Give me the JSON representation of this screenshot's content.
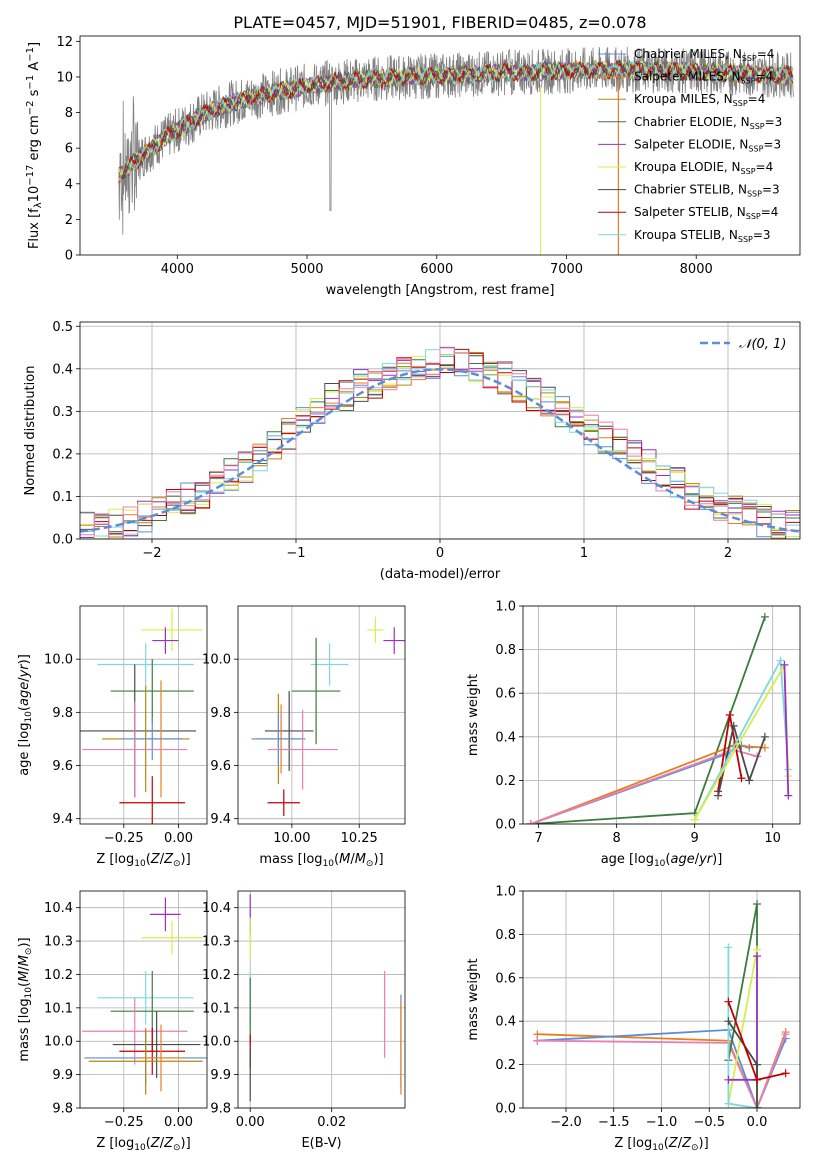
{
  "figure": {
    "title": "PLATE=0457, MJD=51901, FIBERID=0485, z=0.078"
  },
  "colors": {
    "Chabrier MILES": "#5b8ed6",
    "Salpeter MILES": "#e67e22",
    "Kroupa MILES": "#b8860b",
    "Chabrier ELODIE": "#3d7a3d",
    "Salpeter ELODIE": "#9b30c8",
    "Kroupa ELODIE": "#d4f04a",
    "Chabrier STELIB": "#4a4a4a",
    "Salpeter STELIB": "#c00000",
    "Kroupa STELIB": "#7fd8e0",
    "pink": "#e87fb0",
    "data": "#808080"
  },
  "chart_data": [
    {
      "type": "line",
      "title": "PLATE=0457, MJD=51901, FIBERID=0485, z=0.078",
      "xlabel": "wavelength [Angstrom, rest frame]",
      "ylabel": "Flux [f_λ 10^-17 erg cm^-2 s^-1 A^-1]",
      "xlim": [
        3250,
        8800
      ],
      "ylim": [
        0,
        12.3
      ],
      "xticks": [
        4000,
        5000,
        6000,
        7000,
        8000
      ],
      "yticks": [
        0,
        2,
        4,
        6,
        8,
        10,
        12
      ],
      "legend_position": "right",
      "legend": [
        {
          "model": "Chabrier MILES",
          "nssp": 4
        },
        {
          "model": "Salpeter MILES",
          "nssp": 4
        },
        {
          "model": "Kroupa MILES",
          "nssp": 4
        },
        {
          "model": "Chabrier ELODIE",
          "nssp": 3
        },
        {
          "model": "Salpeter ELODIE",
          "nssp": 3
        },
        {
          "model": "Kroupa ELODIE",
          "nssp": 4
        },
        {
          "model": "Chabrier STELIB",
          "nssp": 3
        },
        {
          "model": "Salpeter STELIB",
          "nssp": 4
        },
        {
          "model": "Kroupa STELIB",
          "nssp": 3
        }
      ],
      "continuum": {
        "x": [
          3550,
          3700,
          3850,
          4000,
          4200,
          4400,
          4600,
          4800,
          5000,
          5200,
          5500,
          5800,
          6100,
          6400,
          6800,
          7200,
          7600,
          8000,
          8400,
          8700
        ],
        "y": [
          4.5,
          5.4,
          6.3,
          7.0,
          7.9,
          8.5,
          8.9,
          9.2,
          9.5,
          9.7,
          9.9,
          10.0,
          10.1,
          10.2,
          10.3,
          10.4,
          10.4,
          10.3,
          10.2,
          10.1
        ]
      },
      "data_range": [
        3550,
        8750
      ]
    },
    {
      "type": "bar",
      "xlabel": "(data-model)/error",
      "ylabel": "Normed distribution",
      "xlim": [
        -2.5,
        2.5
      ],
      "ylim": [
        0,
        0.51
      ],
      "xticks": [
        -2,
        -1,
        0,
        1,
        2
      ],
      "yticks": [
        0.0,
        0.1,
        0.2,
        0.3,
        0.4,
        0.5
      ],
      "legend": "N(0,1)",
      "legend_position": "top-right",
      "bins": [
        -2.5,
        -2.4,
        -2.3,
        -2.2,
        -2.1,
        -2.0,
        -1.9,
        -1.8,
        -1.7,
        -1.6,
        -1.5,
        -1.4,
        -1.3,
        -1.2,
        -1.1,
        -1.0,
        -0.9,
        -0.8,
        -0.7,
        -0.6,
        -0.5,
        -0.4,
        -0.3,
        -0.2,
        -0.1,
        0.0,
        0.1,
        0.2,
        0.3,
        0.4,
        0.5,
        0.6,
        0.7,
        0.8,
        0.9,
        1.0,
        1.1,
        1.2,
        1.3,
        1.4,
        1.5,
        1.6,
        1.7,
        1.8,
        1.9,
        2.0,
        2.1,
        2.2,
        2.3,
        2.4,
        2.5
      ],
      "histogram_base": [
        0.025,
        0.03,
        0.035,
        0.045,
        0.055,
        0.065,
        0.08,
        0.095,
        0.11,
        0.13,
        0.15,
        0.17,
        0.19,
        0.215,
        0.245,
        0.27,
        0.3,
        0.33,
        0.34,
        0.36,
        0.37,
        0.38,
        0.4,
        0.41,
        0.41,
        0.42,
        0.42,
        0.41,
        0.39,
        0.38,
        0.36,
        0.34,
        0.32,
        0.3,
        0.28,
        0.26,
        0.24,
        0.22,
        0.195,
        0.17,
        0.15,
        0.13,
        0.11,
        0.095,
        0.08,
        0.065,
        0.055,
        0.045,
        0.04,
        0.03
      ]
    },
    {
      "type": "scatter",
      "xlabel": "Z [log10(Z/Z_sun)]",
      "ylabel": "age [log10(age/yr)]",
      "xlim": [
        -0.45,
        0.13
      ],
      "ylim": [
        9.38,
        10.2
      ],
      "xticks": [
        -0.25,
        0.0
      ],
      "yticks": [
        9.4,
        9.6,
        9.8,
        10.0
      ],
      "points": [
        {
          "model": "Kroupa ELODIE",
          "x": -0.03,
          "y": 10.11,
          "xerr": 0.14,
          "yerr": 0.08
        },
        {
          "model": "Salpeter ELODIE",
          "x": -0.06,
          "y": 10.07,
          "xerr": 0.06,
          "yerr": 0.05
        },
        {
          "model": "Kroupa STELIB",
          "x": -0.15,
          "y": 9.98,
          "xerr": 0.22,
          "yerr": 0.08
        },
        {
          "model": "Chabrier ELODIE",
          "x": -0.12,
          "y": 9.88,
          "xerr": 0.19,
          "yerr": 0.12
        },
        {
          "model": "Chabrier STELIB",
          "x": -0.2,
          "y": 9.73,
          "xerr": 0.28,
          "yerr": 0.25
        },
        {
          "model": "Kroupa MILES",
          "x": -0.15,
          "y": 9.7,
          "xerr": 0.2,
          "yerr": 0.2
        },
        {
          "model": "Salpeter MILES",
          "x": -0.08,
          "y": 9.7,
          "xerr": 0.1,
          "yerr": 0.22
        },
        {
          "model": "Chabrier MILES",
          "x": -0.12,
          "y": 9.7,
          "xerr": 0.14,
          "yerr": 0.08
        },
        {
          "model": "pink",
          "x": -0.2,
          "y": 9.66,
          "xerr": 0.24,
          "yerr": 0.18
        },
        {
          "model": "Salpeter STELIB",
          "x": -0.12,
          "y": 9.46,
          "xerr": 0.15,
          "yerr": 0.1
        }
      ]
    },
    {
      "type": "scatter",
      "xlabel": "mass [log10(M/M_sun)]",
      "ylabel": "",
      "xlim": [
        9.8,
        10.42
      ],
      "ylim": [
        9.38,
        10.2
      ],
      "xticks": [
        10.0,
        10.25
      ],
      "yticks": [
        9.4,
        9.6,
        9.8,
        10.0
      ],
      "points": [
        {
          "model": "Kroupa ELODIE",
          "x": 10.31,
          "y": 10.11,
          "xerr": 0.03,
          "yerr": 0.05
        },
        {
          "model": "Salpeter ELODIE",
          "x": 10.38,
          "y": 10.07,
          "xerr": 0.04,
          "yerr": 0.05
        },
        {
          "model": "Kroupa STELIB",
          "x": 10.14,
          "y": 9.98,
          "xerr": 0.07,
          "yerr": 0.08
        },
        {
          "model": "Chabrier ELODIE",
          "x": 10.09,
          "y": 9.88,
          "xerr": 0.09,
          "yerr": 0.2
        },
        {
          "model": "Chabrier STELIB",
          "x": 9.99,
          "y": 9.73,
          "xerr": 0.09,
          "yerr": 0.15
        },
        {
          "model": "Kroupa MILES",
          "x": 9.95,
          "y": 9.7,
          "xerr": 0.08,
          "yerr": 0.17
        },
        {
          "model": "Salpeter MILES",
          "x": 9.96,
          "y": 9.7,
          "xerr": 0.09,
          "yerr": 0.13
        },
        {
          "model": "Chabrier MILES",
          "x": 9.95,
          "y": 9.7,
          "xerr": 0.1,
          "yerr": 0.1
        },
        {
          "model": "pink",
          "x": 10.04,
          "y": 9.66,
          "xerr": 0.13,
          "yerr": 0.15
        },
        {
          "model": "Salpeter STELIB",
          "x": 9.97,
          "y": 9.46,
          "xerr": 0.06,
          "yerr": 0.05
        }
      ]
    },
    {
      "type": "line",
      "xlabel": "age [log10(age/yr)]",
      "ylabel": "mass weight",
      "xlim": [
        6.8,
        10.35
      ],
      "ylim": [
        0,
        1.0
      ],
      "xticks": [
        7,
        8,
        9,
        10
      ],
      "yticks": [
        0.0,
        0.2,
        0.4,
        0.6,
        0.8,
        1.0
      ],
      "series": [
        {
          "model": "Chabrier ELODIE",
          "x": [
            6.9,
            9.0,
            9.9
          ],
          "y": [
            0.0,
            0.05,
            0.95
          ]
        },
        {
          "model": "Chabrier MILES",
          "x": [
            6.9,
            9.4,
            9.6,
            9.7
          ],
          "y": [
            0.0,
            0.32,
            0.36,
            0.35
          ]
        },
        {
          "model": "Salpeter MILES",
          "x": [
            6.9,
            9.5,
            9.9
          ],
          "y": [
            0.0,
            0.36,
            0.35
          ]
        },
        {
          "model": "pink",
          "x": [
            6.9,
            9.5,
            9.8
          ],
          "y": [
            0.0,
            0.34,
            0.31
          ]
        },
        {
          "model": "Salpeter STELIB",
          "x": [
            9.3,
            9.45,
            9.6
          ],
          "y": [
            0.15,
            0.5,
            0.21
          ]
        },
        {
          "model": "Chabrier STELIB",
          "x": [
            9.3,
            9.5,
            9.7,
            9.9
          ],
          "y": [
            0.13,
            0.45,
            0.2,
            0.4
          ]
        },
        {
          "model": "Kroupa STELIB",
          "x": [
            9.0,
            10.1,
            10.2
          ],
          "y": [
            0.02,
            0.75,
            0.25
          ]
        },
        {
          "model": "Kroupa ELODIE",
          "x": [
            9.0,
            10.15,
            10.2
          ],
          "y": [
            0.02,
            0.73,
            0.22
          ]
        },
        {
          "model": "Salpeter ELODIE",
          "x": [
            10.15,
            10.2
          ],
          "y": [
            0.73,
            0.13
          ]
        }
      ]
    },
    {
      "type": "scatter",
      "xlabel": "Z [log10(Z/Z_sun)]",
      "ylabel": "mass [log10(M/M_sun)]",
      "xlim": [
        -0.45,
        0.13
      ],
      "ylim": [
        9.8,
        10.45
      ],
      "xticks": [
        -0.25,
        0.0
      ],
      "yticks": [
        9.8,
        9.9,
        10.0,
        10.1,
        10.2,
        10.3,
        10.4
      ],
      "points": [
        {
          "model": "Salpeter ELODIE",
          "x": -0.06,
          "y": 10.38,
          "xerr": 0.07,
          "yerr": 0.05
        },
        {
          "model": "Kroupa ELODIE",
          "x": -0.03,
          "y": 10.31,
          "xerr": 0.14,
          "yerr": 0.05
        },
        {
          "model": "Kroupa STELIB",
          "x": -0.15,
          "y": 10.13,
          "xerr": 0.22,
          "yerr": 0.08
        },
        {
          "model": "Chabrier ELODIE",
          "x": -0.12,
          "y": 10.09,
          "xerr": 0.19,
          "yerr": 0.12
        },
        {
          "model": "pink",
          "x": -0.2,
          "y": 10.03,
          "xerr": 0.24,
          "yerr": 0.1
        },
        {
          "model": "Chabrier STELIB",
          "x": -0.1,
          "y": 9.99,
          "xerr": 0.2,
          "yerr": 0.1
        },
        {
          "model": "Salpeter STELIB",
          "x": -0.12,
          "y": 9.97,
          "xerr": 0.15,
          "yerr": 0.07
        },
        {
          "model": "Chabrier MILES",
          "x": -0.15,
          "y": 9.95,
          "xerr": 0.28,
          "yerr": 0.08
        },
        {
          "model": "Kroupa MILES",
          "x": -0.15,
          "y": 9.94,
          "xerr": 0.26,
          "yerr": 0.1
        },
        {
          "model": "Salpeter MILES",
          "x": -0.08,
          "y": 9.95,
          "xerr": 0.1,
          "yerr": 0.1
        }
      ]
    },
    {
      "type": "scatter",
      "xlabel": "E(B-V)",
      "ylabel": "",
      "xlim": [
        -0.003,
        0.038
      ],
      "ylim": [
        9.8,
        10.45
      ],
      "xticks": [
        0.0,
        0.02
      ],
      "yticks": [
        9.8,
        9.9,
        10.0,
        10.1,
        10.2,
        10.3,
        10.4
      ],
      "points": [
        {
          "model": "Salpeter ELODIE",
          "x": 0.0,
          "y": 10.38,
          "xerr": 0.0,
          "yerr": 0.06
        },
        {
          "model": "Kroupa ELODIE",
          "x": 0.0,
          "y": 10.31,
          "xerr": 0.0,
          "yerr": 0.06
        },
        {
          "model": "Kroupa STELIB",
          "x": 0.0,
          "y": 10.13,
          "xerr": 0.0,
          "yerr": 0.08
        },
        {
          "model": "Chabrier ELODIE",
          "x": 0.0,
          "y": 10.09,
          "xerr": 0.0,
          "yerr": 0.1
        },
        {
          "model": "Salpeter STELIB",
          "x": 0.0,
          "y": 9.97,
          "xerr": 0.0,
          "yerr": 0.05
        },
        {
          "model": "Chabrier STELIB",
          "x": 0.0,
          "y": 9.9,
          "xerr": 0.0,
          "yerr": 0.08
        },
        {
          "model": "pink",
          "x": 0.033,
          "y": 10.08,
          "xerr": 0.0,
          "yerr": 0.13
        },
        {
          "model": "Chabrier MILES",
          "x": 0.037,
          "y": 10.0,
          "xerr": 0.0,
          "yerr": 0.14
        },
        {
          "model": "Salpeter MILES",
          "x": 0.037,
          "y": 9.98,
          "xerr": 0.0,
          "yerr": 0.14
        }
      ]
    },
    {
      "type": "line",
      "xlabel": "Z [log10(Z/Z_sun)]",
      "ylabel": "mass weight",
      "xlim": [
        -2.45,
        0.45
      ],
      "ylim": [
        0,
        1.0
      ],
      "xticks": [
        -2.0,
        -1.5,
        -1.0,
        -0.5,
        0.0
      ],
      "yticks": [
        0.0,
        0.2,
        0.4,
        0.6,
        0.8,
        1.0
      ],
      "series": [
        {
          "model": "Salpeter MILES",
          "x": [
            -2.3,
            -0.3,
            0.0,
            0.3
          ],
          "y": [
            0.34,
            0.31,
            0.0,
            0.35
          ]
        },
        {
          "model": "Chabrier MILES",
          "x": [
            -2.3,
            -0.3,
            0.0,
            0.3
          ],
          "y": [
            0.31,
            0.36,
            0.0,
            0.32
          ]
        },
        {
          "model": "pink",
          "x": [
            -2.3,
            -0.3,
            0.0,
            0.3
          ],
          "y": [
            0.31,
            0.3,
            0.0,
            0.34
          ]
        },
        {
          "model": "Chabrier ELODIE",
          "x": [
            -0.3,
            0.0,
            0.0
          ],
          "y": [
            0.22,
            0.94,
            0.0
          ]
        },
        {
          "model": "Kroupa ELODIE",
          "x": [
            -0.3,
            0.0,
            0.0
          ],
          "y": [
            0.02,
            0.73,
            0.0
          ]
        },
        {
          "model": "Kroupa STELIB",
          "x": [
            -0.3,
            -0.3,
            0.0
          ],
          "y": [
            0.74,
            0.02,
            0.0
          ]
        },
        {
          "model": "Salpeter ELODIE",
          "x": [
            -0.3,
            0.0,
            0.0
          ],
          "y": [
            0.13,
            0.13,
            0.7
          ]
        },
        {
          "model": "Chabrier STELIB",
          "x": [
            -0.3,
            0.0,
            0.0
          ],
          "y": [
            0.4,
            0.2,
            0.0
          ]
        },
        {
          "model": "Salpeter STELIB",
          "x": [
            -0.3,
            0.0,
            0.3
          ],
          "y": [
            0.49,
            0.13,
            0.16
          ]
        }
      ]
    }
  ]
}
